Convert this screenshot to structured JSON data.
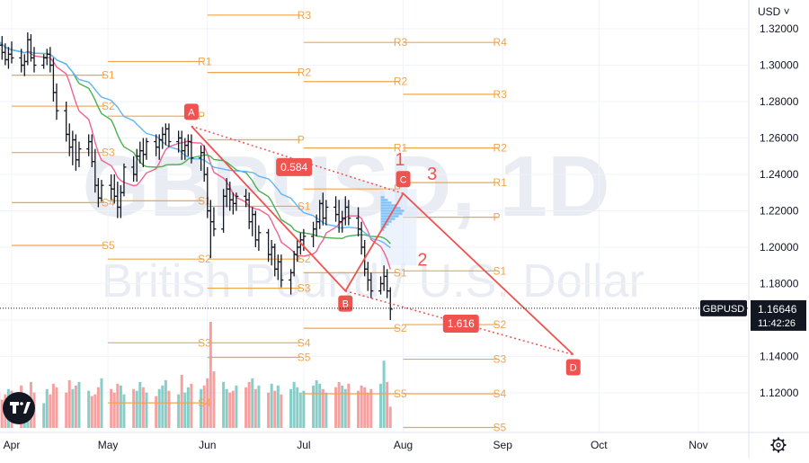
{
  "chart_data": {
    "type": "candlestick",
    "symbol": "GBPUSD",
    "watermark": {
      "ticker": "GBPUSD, 1D",
      "name": "British Pound / U.S. Dollar"
    },
    "currency": "USD",
    "last_price": "1.16646",
    "countdown": "11:42:26",
    "ylim": [
      1.095,
      1.328
    ],
    "y_ticks": [
      "1.32000",
      "1.30000",
      "1.28000",
      "1.26000",
      "1.24000",
      "1.22000",
      "1.20000",
      "1.18000",
      "1.16000",
      "1.14000",
      "1.12000"
    ],
    "x_ticks": [
      "Apr",
      "May",
      "Jun",
      "Jul",
      "Aug",
      "Sep",
      "Oct",
      "Nov"
    ],
    "ohlc": [
      [
        1.318,
        1.323,
        1.312,
        1.316
      ],
      [
        1.316,
        1.321,
        1.309,
        1.312
      ],
      [
        1.312,
        1.318,
        1.306,
        1.311
      ],
      [
        1.311,
        1.316,
        1.303,
        1.307
      ],
      [
        1.307,
        1.312,
        1.3,
        1.303
      ],
      [
        1.303,
        1.31,
        1.298,
        1.306
      ],
      [
        1.306,
        1.313,
        1.301,
        1.304
      ],
      [
        1.304,
        1.309,
        1.296,
        1.3
      ],
      [
        1.3,
        1.306,
        1.294,
        1.302
      ],
      [
        1.302,
        1.318,
        1.3,
        1.314
      ],
      [
        1.314,
        1.317,
        1.302,
        1.304
      ],
      [
        1.304,
        1.31,
        1.296,
        1.3
      ],
      [
        1.3,
        1.306,
        1.298,
        1.304
      ],
      [
        1.304,
        1.309,
        1.3,
        1.306
      ],
      [
        1.306,
        1.31,
        1.296,
        1.3
      ],
      [
        1.3,
        1.304,
        1.28,
        1.285
      ],
      [
        1.285,
        1.29,
        1.27,
        1.275
      ],
      [
        1.275,
        1.28,
        1.258,
        1.262
      ],
      [
        1.262,
        1.268,
        1.25,
        1.255
      ],
      [
        1.255,
        1.264,
        1.245,
        1.259
      ],
      [
        1.259,
        1.262,
        1.242,
        1.248
      ],
      [
        1.248,
        1.258,
        1.244,
        1.254
      ],
      [
        1.254,
        1.262,
        1.25,
        1.258
      ],
      [
        1.258,
        1.262,
        1.244,
        1.247
      ],
      [
        1.247,
        1.254,
        1.23,
        1.234
      ],
      [
        1.234,
        1.238,
        1.222,
        1.227
      ],
      [
        1.227,
        1.237,
        1.225,
        1.234
      ],
      [
        1.234,
        1.24,
        1.226,
        1.232
      ],
      [
        1.232,
        1.24,
        1.224,
        1.228
      ],
      [
        1.228,
        1.236,
        1.216,
        1.222
      ],
      [
        1.222,
        1.234,
        1.216,
        1.23
      ],
      [
        1.23,
        1.246,
        1.228,
        1.244
      ],
      [
        1.244,
        1.25,
        1.236,
        1.24
      ],
      [
        1.24,
        1.254,
        1.236,
        1.25
      ],
      [
        1.25,
        1.258,
        1.246,
        1.253
      ],
      [
        1.253,
        1.26,
        1.244,
        1.251
      ],
      [
        1.251,
        1.26,
        1.248,
        1.258
      ],
      [
        1.258,
        1.262,
        1.25,
        1.255
      ],
      [
        1.255,
        1.262,
        1.248,
        1.259
      ],
      [
        1.259,
        1.266,
        1.254,
        1.262
      ],
      [
        1.262,
        1.268,
        1.256,
        1.265
      ],
      [
        1.265,
        1.268,
        1.255,
        1.258
      ],
      [
        1.258,
        1.264,
        1.252,
        1.26
      ],
      [
        1.26,
        1.264,
        1.248,
        1.253
      ],
      [
        1.253,
        1.26,
        1.248,
        1.256
      ],
      [
        1.256,
        1.262,
        1.25,
        1.258
      ],
      [
        1.258,
        1.262,
        1.246,
        1.249
      ],
      [
        1.249,
        1.256,
        1.242,
        1.252
      ],
      [
        1.252,
        1.256,
        1.236,
        1.24
      ],
      [
        1.24,
        1.244,
        1.216,
        1.22
      ],
      [
        1.22,
        1.226,
        1.194,
        1.214
      ],
      [
        1.214,
        1.222,
        1.206,
        1.21
      ],
      [
        1.21,
        1.232,
        1.208,
        1.228
      ],
      [
        1.228,
        1.238,
        1.222,
        1.232
      ],
      [
        1.232,
        1.236,
        1.22,
        1.226
      ],
      [
        1.226,
        1.23,
        1.218,
        1.224
      ],
      [
        1.224,
        1.23,
        1.22,
        1.228
      ],
      [
        1.228,
        1.232,
        1.222,
        1.226
      ],
      [
        1.226,
        1.23,
        1.21,
        1.214
      ],
      [
        1.214,
        1.222,
        1.206,
        1.218
      ],
      [
        1.218,
        1.22,
        1.2,
        1.204
      ],
      [
        1.204,
        1.212,
        1.198,
        1.208
      ],
      [
        1.208,
        1.21,
        1.192,
        1.196
      ],
      [
        1.196,
        1.204,
        1.19,
        1.2
      ],
      [
        1.2,
        1.202,
        1.184,
        1.188
      ],
      [
        1.188,
        1.196,
        1.182,
        1.192
      ],
      [
        1.192,
        1.196,
        1.178,
        1.182
      ],
      [
        1.182,
        1.188,
        1.174,
        1.186
      ],
      [
        1.186,
        1.198,
        1.184,
        1.196
      ],
      [
        1.196,
        1.204,
        1.192,
        1.2
      ],
      [
        1.2,
        1.208,
        1.196,
        1.204
      ],
      [
        1.204,
        1.21,
        1.198,
        1.206
      ],
      [
        1.206,
        1.214,
        1.2,
        1.21
      ],
      [
        1.21,
        1.218,
        1.206,
        1.214
      ],
      [
        1.214,
        1.226,
        1.21,
        1.224
      ],
      [
        1.224,
        1.23,
        1.212,
        1.216
      ],
      [
        1.216,
        1.226,
        1.212,
        1.222
      ],
      [
        1.222,
        1.228,
        1.214,
        1.218
      ],
      [
        1.218,
        1.226,
        1.208,
        1.214
      ],
      [
        1.214,
        1.22,
        1.208,
        1.216
      ],
      [
        1.216,
        1.228,
        1.212,
        1.222
      ],
      [
        1.222,
        1.226,
        1.212,
        1.216
      ],
      [
        1.216,
        1.222,
        1.206,
        1.21
      ],
      [
        1.21,
        1.214,
        1.196,
        1.2
      ],
      [
        1.2,
        1.204,
        1.184,
        1.188
      ],
      [
        1.188,
        1.192,
        1.176,
        1.182
      ],
      [
        1.182,
        1.186,
        1.172,
        1.176
      ],
      [
        1.176,
        1.184,
        1.174,
        1.18
      ],
      [
        1.18,
        1.19,
        1.176,
        1.184
      ],
      [
        1.184,
        1.188,
        1.172,
        1.176
      ],
      [
        1.176,
        1.178,
        1.16,
        1.166
      ]
    ],
    "volume": [
      22,
      18,
      20,
      16,
      19,
      22,
      21,
      24,
      18,
      17,
      26,
      20,
      14,
      22,
      19,
      25,
      23,
      20,
      27,
      22,
      24,
      26,
      21,
      18,
      19,
      23,
      28,
      22,
      20,
      25,
      24,
      19,
      22,
      21,
      26,
      23,
      20,
      18,
      22,
      24,
      27,
      21,
      19,
      30,
      20,
      23,
      25,
      22,
      24,
      28,
      60,
      32,
      26,
      22,
      20,
      21,
      24,
      23,
      26,
      28,
      22,
      24,
      20,
      25,
      21,
      24,
      19,
      22,
      26,
      23,
      20,
      21,
      24,
      27,
      25,
      22,
      20,
      23,
      26,
      24,
      22,
      25,
      21,
      24,
      23,
      20,
      22,
      25,
      38,
      26,
      12
    ],
    "volume_up_color": "#26a69a",
    "volume_down_color": "#ef5350",
    "moving_averages": [
      {
        "color": "#f06292",
        "period": 10
      },
      {
        "color": "#4caf50",
        "period": 20
      },
      {
        "color": "#64b5f6",
        "period": 30
      }
    ],
    "pivots": [
      {
        "label": "R4",
        "price": 1.3125,
        "from": "2022-08-01",
        "to": "2022-09-01"
      },
      {
        "label": "R3",
        "price": 1.3275,
        "from": "2022-06-01",
        "to": "2022-07-01"
      },
      {
        "label": "R3",
        "price": 1.3125,
        "from": "2022-07-01",
        "to": "2022-08-01"
      },
      {
        "label": "R3",
        "price": 1.284,
        "from": "2022-08-01",
        "to": "2022-09-01"
      },
      {
        "label": "R2",
        "price": 1.296,
        "from": "2022-06-01",
        "to": "2022-07-01"
      },
      {
        "label": "R2",
        "price": 1.291,
        "from": "2022-07-01",
        "to": "2022-08-01"
      },
      {
        "label": "R2",
        "price": 1.2545,
        "from": "2022-08-01",
        "to": "2022-09-01"
      },
      {
        "label": "R1",
        "price": 1.302,
        "from": "2022-05-01",
        "to": "2022-06-01"
      },
      {
        "label": "R1",
        "price": 1.2545,
        "from": "2022-07-01",
        "to": "2022-08-01"
      },
      {
        "label": "R1",
        "price": 1.2355,
        "from": "2022-08-01",
        "to": "2022-09-01"
      },
      {
        "label": "P",
        "price": 1.272,
        "from": "2022-05-01",
        "to": "2022-06-01"
      },
      {
        "label": "P",
        "price": 1.259,
        "from": "2022-06-01",
        "to": "2022-07-01"
      },
      {
        "label": "P",
        "price": 1.232,
        "from": "2022-07-01",
        "to": "2022-08-01"
      },
      {
        "label": "P",
        "price": 1.2165,
        "from": "2022-08-01",
        "to": "2022-09-01"
      },
      {
        "label": "S1",
        "price": 1.2945,
        "from": "2022-04-01",
        "to": "2022-05-01"
      },
      {
        "label": "S1",
        "price": 1.2255,
        "from": "2022-05-01",
        "to": "2022-06-01"
      },
      {
        "label": "S1",
        "price": 1.2225,
        "from": "2022-06-01",
        "to": "2022-07-01"
      },
      {
        "label": "S1",
        "price": 1.186,
        "from": "2022-07-01",
        "to": "2022-08-01"
      },
      {
        "label": "S1",
        "price": 1.187,
        "from": "2022-08-01",
        "to": "2022-09-01"
      },
      {
        "label": "S2",
        "price": 1.2775,
        "from": "2022-04-01",
        "to": "2022-05-01"
      },
      {
        "label": "S2",
        "price": 1.1935,
        "from": "2022-05-01",
        "to": "2022-06-01"
      },
      {
        "label": "S2",
        "price": 1.1935,
        "from": "2022-06-01",
        "to": "2022-07-01"
      },
      {
        "label": "S2",
        "price": 1.1555,
        "from": "2022-07-01",
        "to": "2022-08-01"
      },
      {
        "label": "S2",
        "price": 1.1575,
        "from": "2022-08-01",
        "to": "2022-09-01"
      },
      {
        "label": "S3",
        "price": 1.252,
        "from": "2022-04-01",
        "to": "2022-05-01"
      },
      {
        "label": "S3",
        "price": 1.1475,
        "from": "2022-05-01",
        "to": "2022-06-01"
      },
      {
        "label": "S3",
        "price": 1.1775,
        "from": "2022-06-01",
        "to": "2022-07-01"
      },
      {
        "label": "S3",
        "price": 1.1385,
        "from": "2022-08-01",
        "to": "2022-09-01"
      },
      {
        "label": "S4",
        "price": 1.2245,
        "from": "2022-04-01",
        "to": "2022-05-01"
      },
      {
        "label": "S4",
        "price": 1.1145,
        "from": "2022-05-01",
        "to": "2022-06-01"
      },
      {
        "label": "S4",
        "price": 1.1475,
        "from": "2022-06-01",
        "to": "2022-07-01"
      },
      {
        "label": "S4",
        "price": 1.1195,
        "from": "2022-08-01",
        "to": "2022-09-01"
      },
      {
        "label": "S5",
        "price": 1.201,
        "from": "2022-04-01",
        "to": "2022-05-01"
      },
      {
        "label": "S5",
        "price": 1.1395,
        "from": "2022-06-01",
        "to": "2022-07-01"
      },
      {
        "label": "S5",
        "price": 1.1195,
        "from": "2022-07-01",
        "to": "2022-08-01"
      },
      {
        "label": "S5",
        "price": 1.101,
        "from": "2022-08-01",
        "to": "2022-09-01"
      }
    ],
    "pattern_points": [
      {
        "label": "A",
        "date": "2022-05-27",
        "price": 1.2665
      },
      {
        "label": "B",
        "date": "2022-07-14",
        "price": 1.176
      },
      {
        "label": "C",
        "date": "2022-08-01",
        "price": 1.2295
      },
      {
        "label": "D",
        "date": "2022-09-23",
        "price": 1.141
      }
    ],
    "pattern_ratios": [
      {
        "text": "0.584",
        "date": "2022-06-28",
        "price": 1.244
      },
      {
        "text": "1.616",
        "date": "2022-08-19",
        "price": 1.158
      }
    ],
    "wave_labels": [
      {
        "text": "1",
        "date": "2022-07-31",
        "price": 1.245
      },
      {
        "text": "2",
        "date": "2022-08-07",
        "price": 1.19
      },
      {
        "text": "3",
        "date": "2022-08-10",
        "price": 1.237
      }
    ]
  }
}
